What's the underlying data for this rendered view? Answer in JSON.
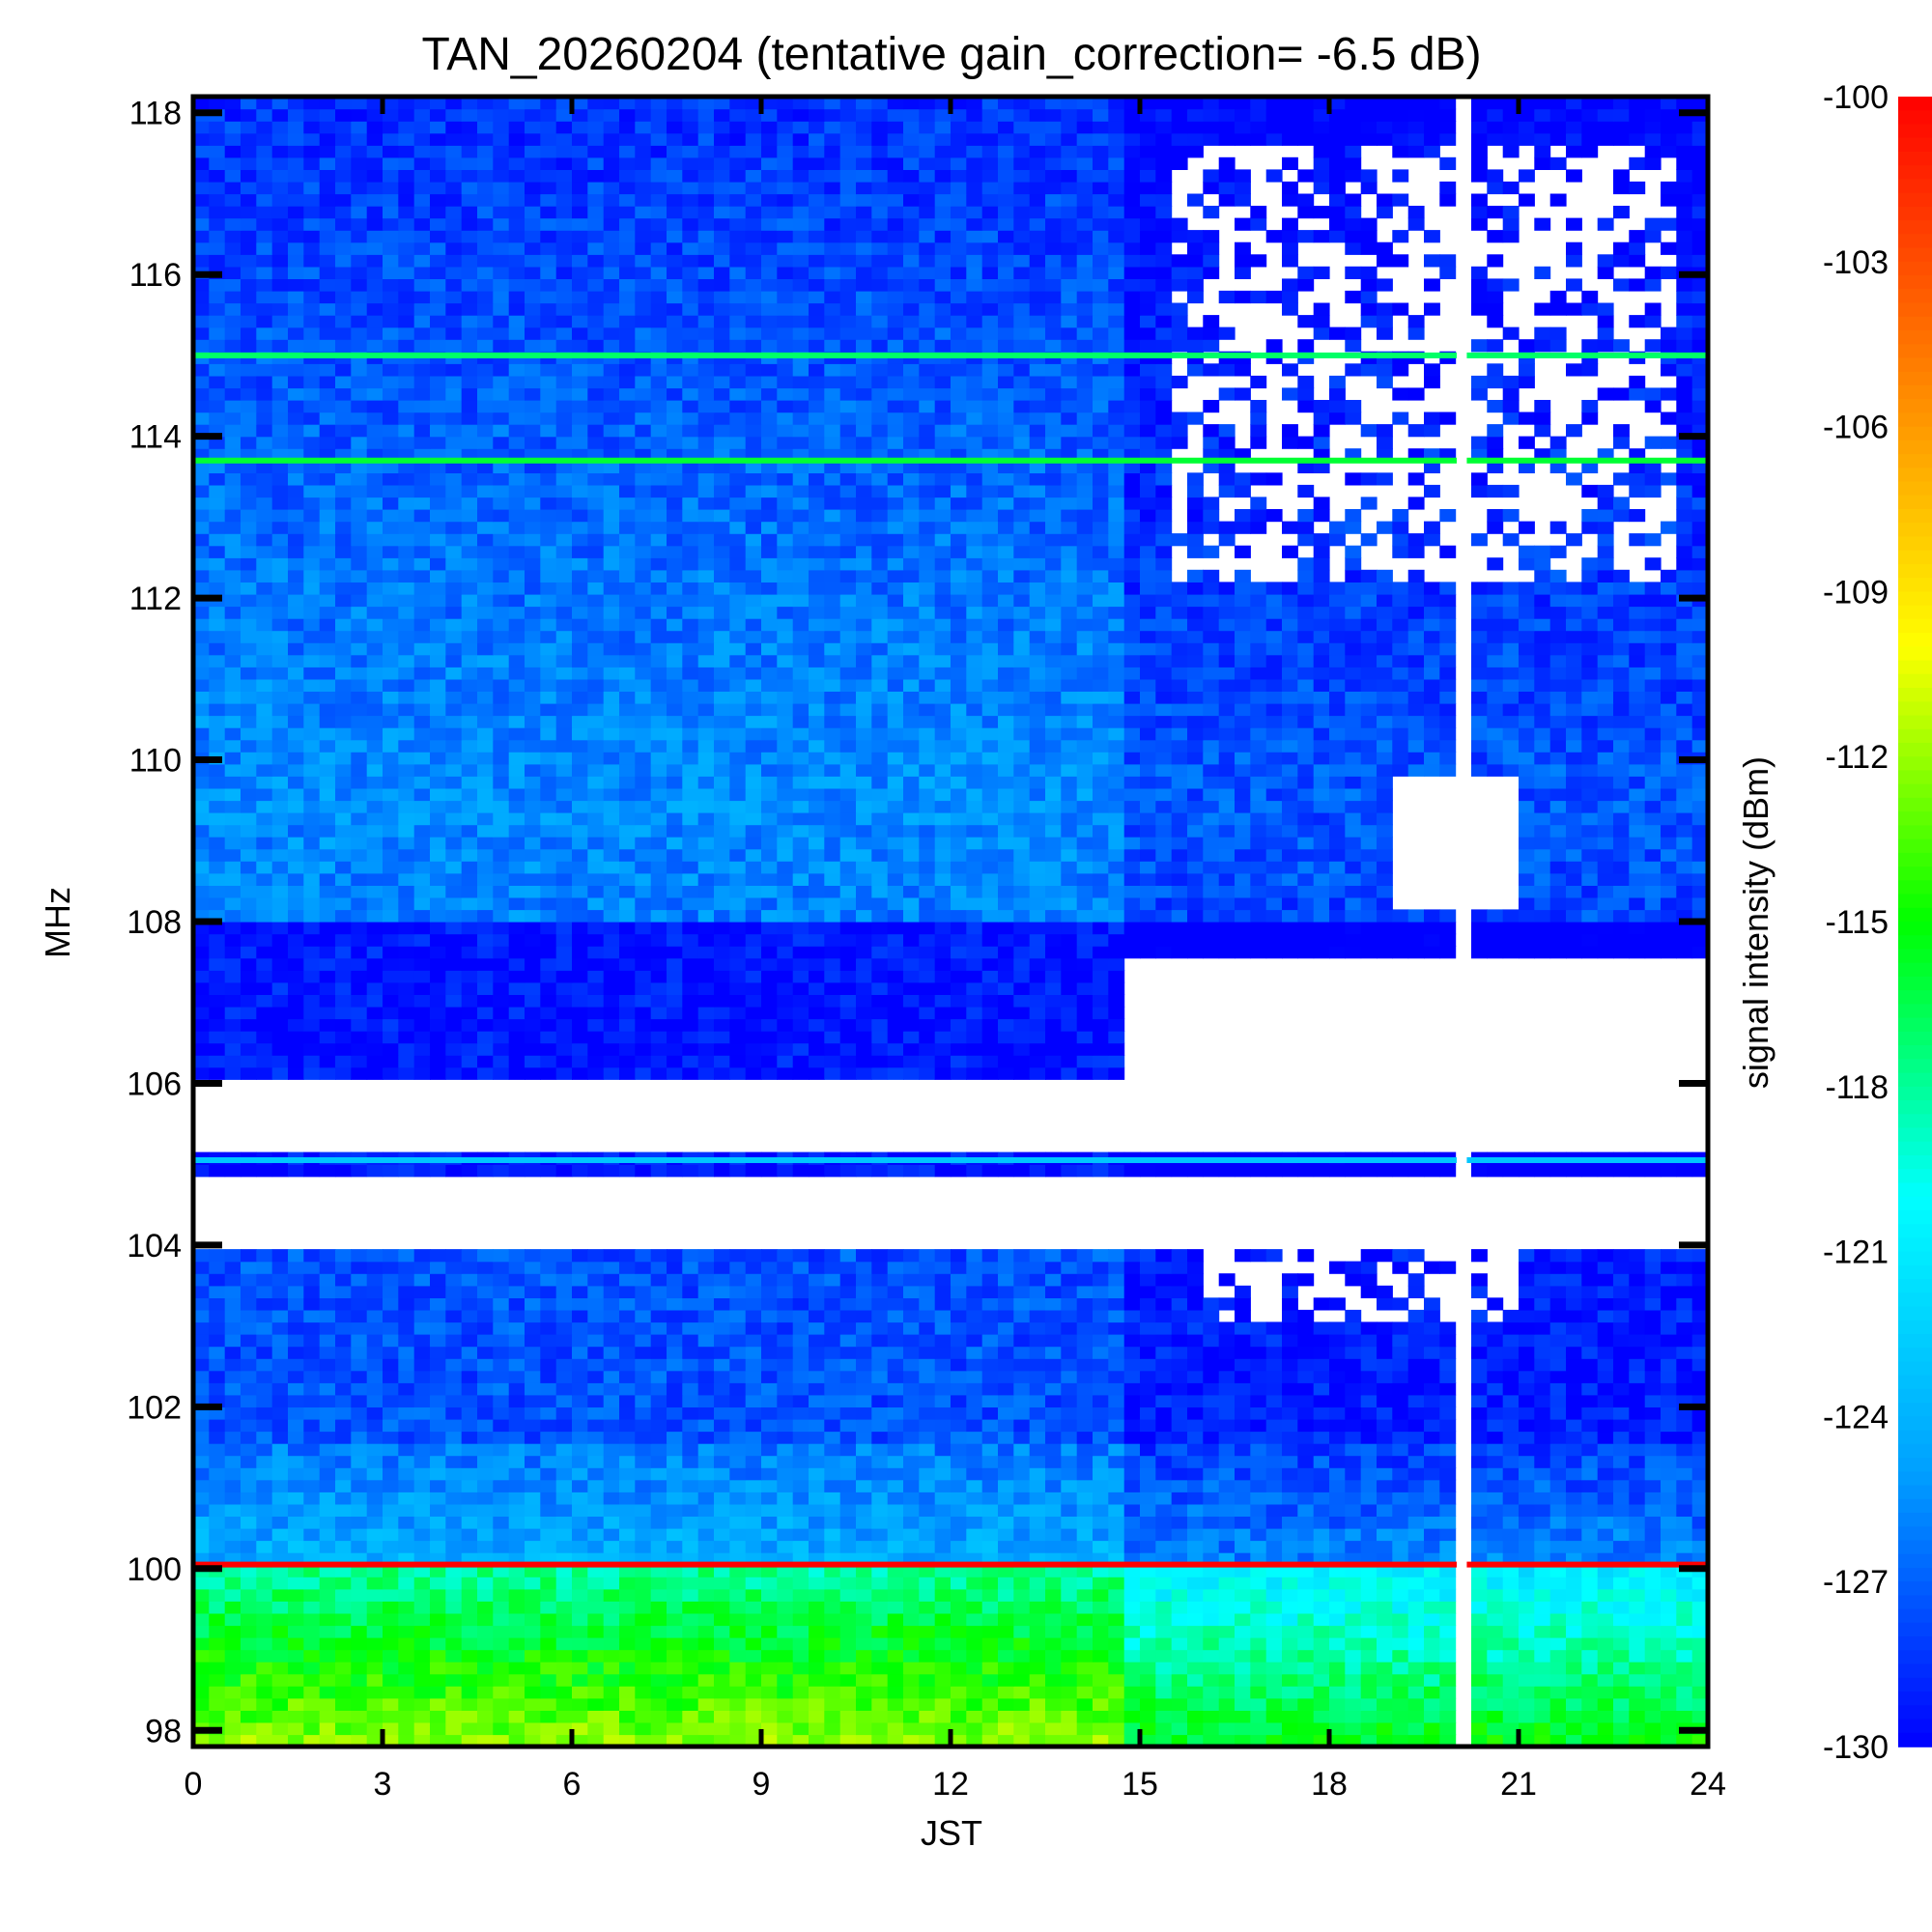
{
  "chart_data": {
    "type": "heatmap",
    "title": "TAN_20260204 (tentative gain_correction= -6.5 dB)",
    "xlabel": "JST",
    "ylabel": "MHz",
    "xlim": [
      0,
      24
    ],
    "ylim": [
      97.8,
      118.2
    ],
    "x_ticks": [
      0,
      3,
      6,
      9,
      12,
      15,
      18,
      21,
      24
    ],
    "y_ticks": [
      98,
      100,
      102,
      104,
      106,
      108,
      110,
      112,
      114,
      116,
      118
    ],
    "colorbar": {
      "label": "signal intensity (dBm)",
      "range": [
        -130,
        -100
      ],
      "ticks": [
        -100,
        -103,
        -106,
        -109,
        -112,
        -115,
        -118,
        -121,
        -124,
        -127,
        -130
      ],
      "colors": [
        "#0000ff",
        "#00a0ff",
        "#00ffff",
        "#00ff00",
        "#ffff00",
        "#ff8000",
        "#ff0000"
      ]
    },
    "features": [
      {
        "name": "strong carrier",
        "freq": 100.05,
        "start": 0,
        "end": 24,
        "level": -100
      },
      {
        "name": "carrier",
        "freq": 115.0,
        "start": 0,
        "end": 24,
        "level": -117
      },
      {
        "name": "carrier",
        "freq": 113.7,
        "start": 0,
        "end": 24,
        "level": -116
      },
      {
        "name": "carrier",
        "freq": 105.05,
        "start": 0,
        "end": 24,
        "level": -123
      },
      {
        "name": "gap",
        "freq_range": [
          104.0,
          104.9
        ],
        "start": 0,
        "end": 24,
        "level": null
      },
      {
        "name": "gap",
        "freq_range": [
          105.2,
          106.0
        ],
        "start": 0,
        "end": 24,
        "level": null
      },
      {
        "name": "data outage",
        "time": 20.1,
        "level": null
      }
    ]
  }
}
